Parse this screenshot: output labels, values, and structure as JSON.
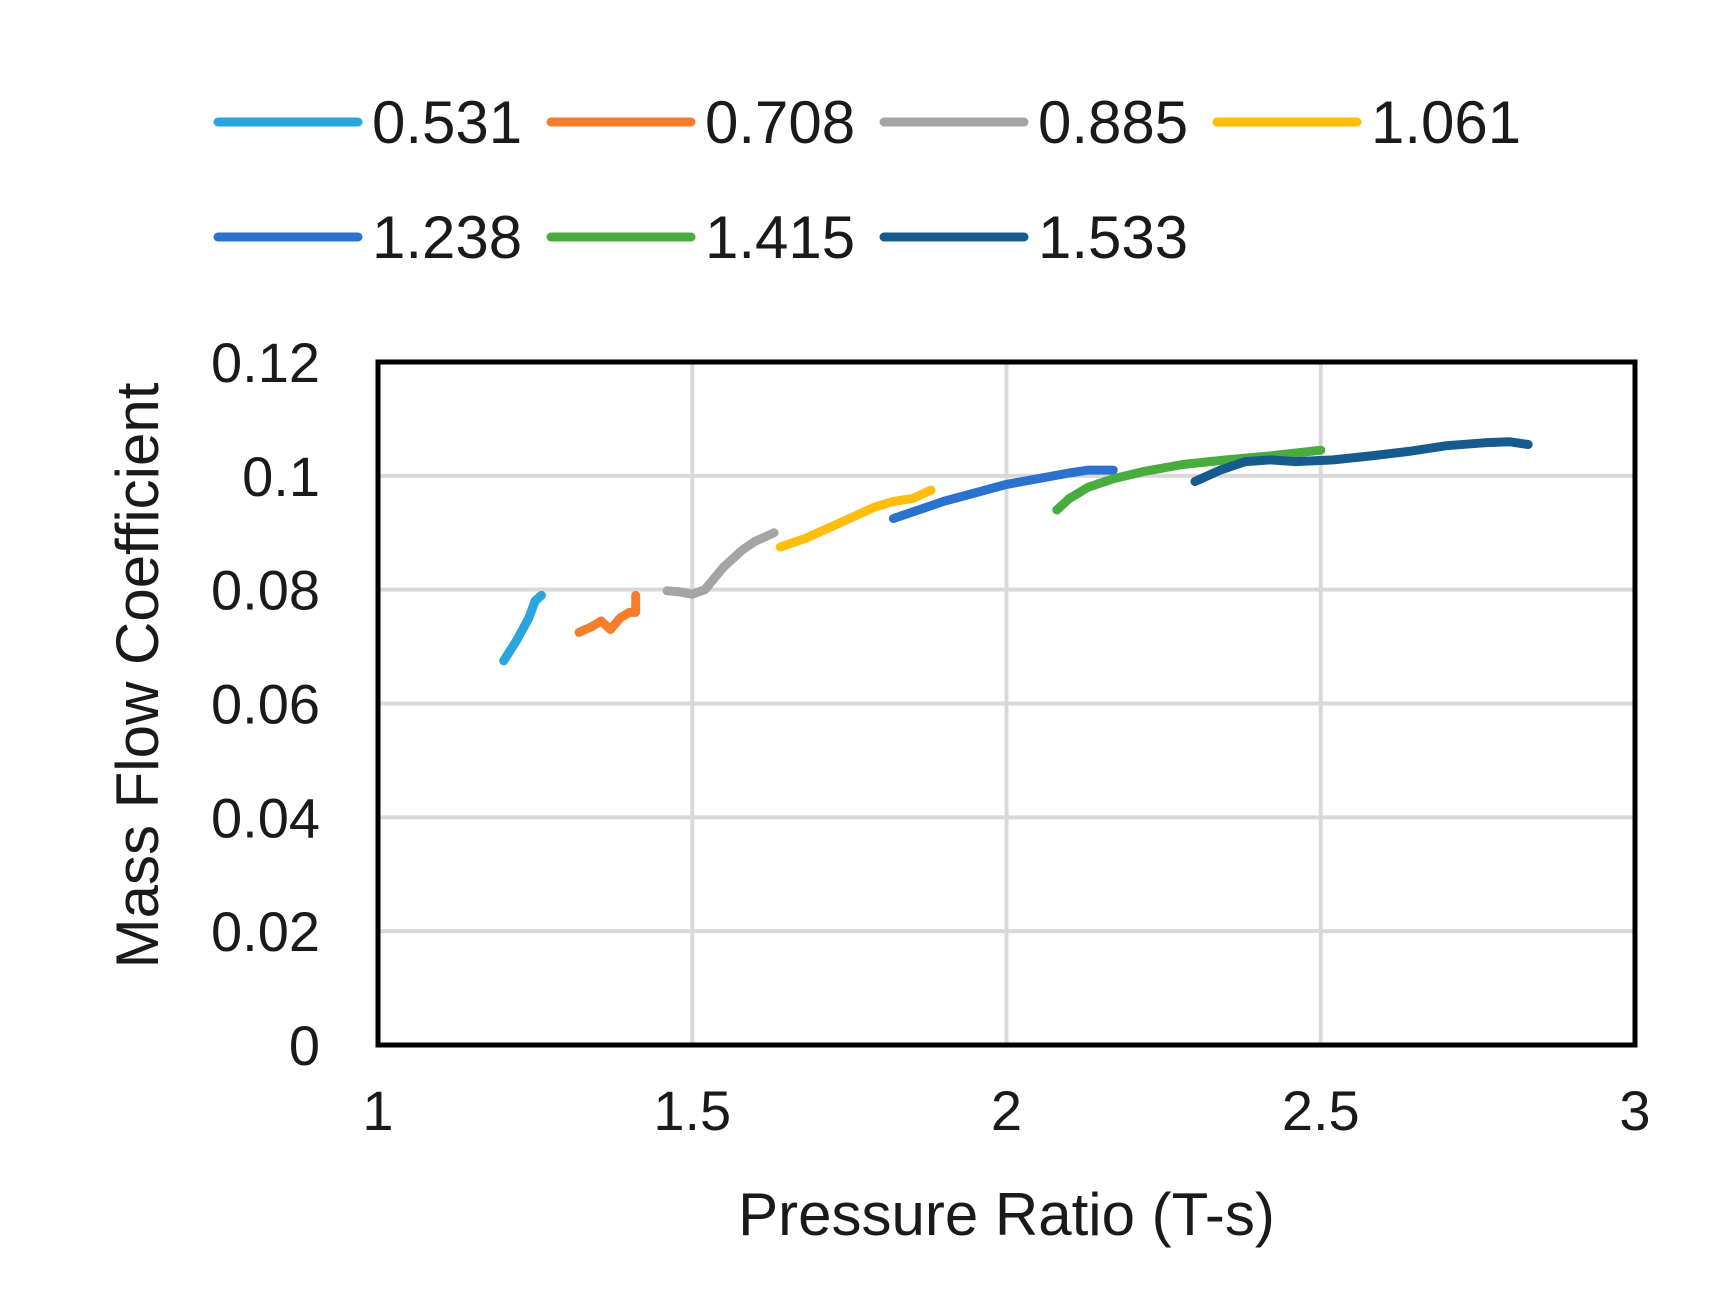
{
  "chart_data": {
    "type": "line",
    "title": "",
    "xlabel": "Pressure Ratio (T-s)",
    "ylabel": "Mass Flow Coefficient",
    "xlim": [
      1,
      3
    ],
    "ylim": [
      0,
      0.12
    ],
    "x_ticks": [
      1,
      1.5,
      2,
      2.5,
      3
    ],
    "x_tick_labels": [
      "1",
      "1.5",
      "2",
      "2.5",
      "3"
    ],
    "y_ticks": [
      0,
      0.02,
      0.04,
      0.06,
      0.08,
      0.1,
      0.12
    ],
    "y_tick_labels": [
      "0",
      "0.02",
      "0.04",
      "0.06",
      "0.08",
      "0.1",
      "0.12"
    ],
    "grid": true,
    "legend_position": "top",
    "series": [
      {
        "name": "0.531",
        "color": "#2AA5DD",
        "x": [
          1.2,
          1.22,
          1.24,
          1.25,
          1.26
        ],
        "y": [
          0.0675,
          0.071,
          0.075,
          0.078,
          0.079
        ]
      },
      {
        "name": "0.708",
        "color": "#F47E2D",
        "x": [
          1.32,
          1.34,
          1.355,
          1.37,
          1.385,
          1.4,
          1.41,
          1.41
        ],
        "y": [
          0.0725,
          0.0735,
          0.0745,
          0.073,
          0.075,
          0.076,
          0.076,
          0.079
        ]
      },
      {
        "name": "0.885",
        "color": "#A5A5A5",
        "x": [
          1.46,
          1.48,
          1.5,
          1.52,
          1.55,
          1.58,
          1.6,
          1.63
        ],
        "y": [
          0.0798,
          0.0796,
          0.0792,
          0.08,
          0.084,
          0.087,
          0.0885,
          0.09
        ]
      },
      {
        "name": "1.061",
        "color": "#FFBE0B",
        "x": [
          1.64,
          1.68,
          1.72,
          1.76,
          1.79,
          1.82,
          1.85,
          1.88
        ],
        "y": [
          0.0875,
          0.089,
          0.091,
          0.093,
          0.0945,
          0.0955,
          0.096,
          0.0975
        ]
      },
      {
        "name": "1.238",
        "color": "#2A72CE",
        "x": [
          1.82,
          1.86,
          1.9,
          1.95,
          2.0,
          2.05,
          2.1,
          2.13,
          2.17
        ],
        "y": [
          0.0925,
          0.094,
          0.0955,
          0.097,
          0.0985,
          0.0995,
          0.1005,
          0.101,
          0.101
        ]
      },
      {
        "name": "1.415",
        "color": "#48AC3F",
        "x": [
          2.08,
          2.1,
          2.13,
          2.17,
          2.22,
          2.28,
          2.35,
          2.42,
          2.5
        ],
        "y": [
          0.094,
          0.096,
          0.098,
          0.0995,
          0.1008,
          0.102,
          0.1028,
          0.1035,
          0.1045
        ]
      },
      {
        "name": "1.533",
        "color": "#175B8E",
        "x": [
          2.3,
          2.34,
          2.38,
          2.42,
          2.46,
          2.52,
          2.58,
          2.64,
          2.7,
          2.76,
          2.8,
          2.83
        ],
        "y": [
          0.099,
          0.101,
          0.1025,
          0.1028,
          0.1025,
          0.1028,
          0.1035,
          0.1043,
          0.1053,
          0.1058,
          0.106,
          0.1055
        ]
      }
    ]
  }
}
